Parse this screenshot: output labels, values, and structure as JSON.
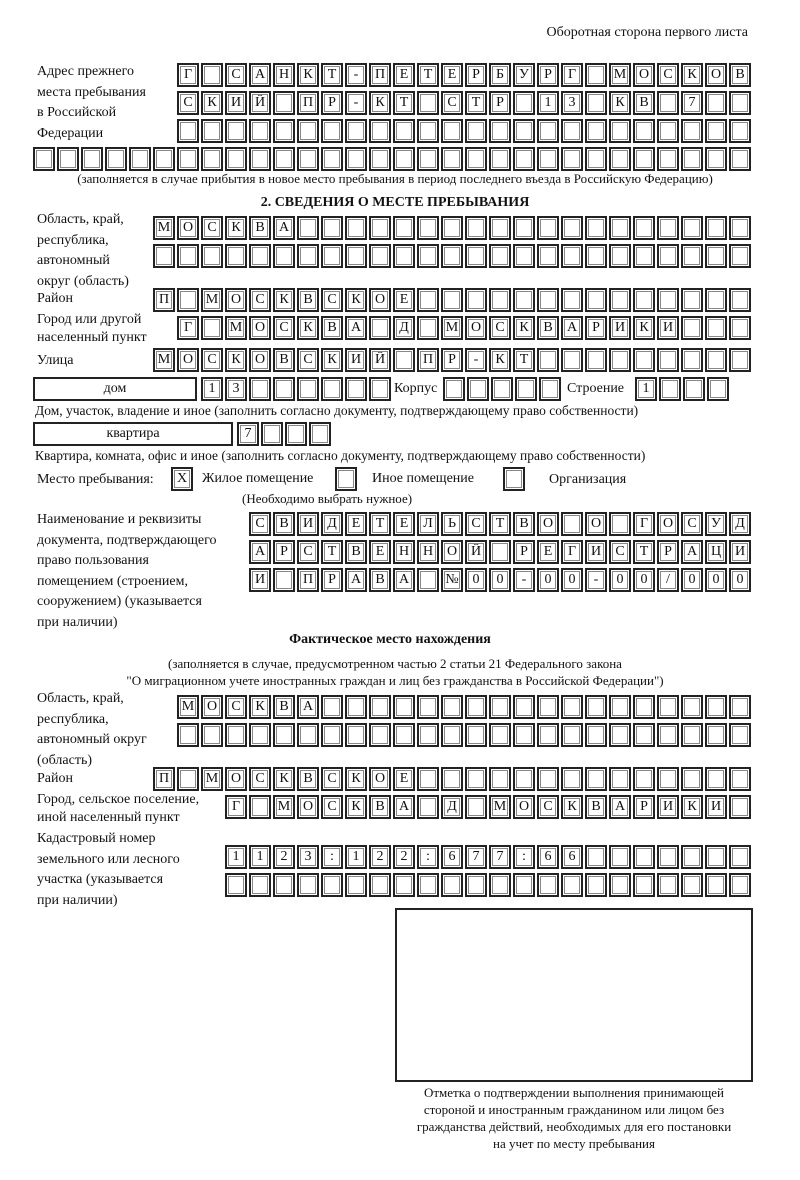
{
  "header": "Оборотная сторона первого листа",
  "prev_address": {
    "label": [
      "Адрес прежнего",
      "места пребывания",
      "в Российской",
      "Федерации"
    ],
    "rows": [
      "Г САНКТ-ПЕТЕРБУРГ МОСКОВ",
      "СКИЙ ПР-КТ СТР 13 КВ 7  ",
      "",
      ""
    ],
    "note": "(заполняется в случае прибытия в новое место пребывания в период последнего въезда в Российскую Федерацию)"
  },
  "section2": {
    "title": "2. СВЕДЕНИЯ О МЕСТЕ ПРЕБЫВАНИЯ",
    "region_label": [
      "Область, край,",
      "республика,",
      "автономный",
      "округ (область)"
    ],
    "region_rows": [
      "МОСКВА",
      ""
    ],
    "district_label": "Район",
    "district": "П МОСКВСКОЕ",
    "city_label": [
      "Город или другой",
      "населенный пункт"
    ],
    "city": "Г МОСКВА Д МОСКВАРИКИ",
    "street_label": "Улица",
    "street": "МОСКОВСКИЙ ПР-КТ",
    "house_type": "дом",
    "house": "13",
    "korpus_label": "Корпус",
    "korpus": "",
    "building_label": "Строение",
    "building": "1",
    "house_note": "Дом, участок, владение и иное (заполнить согласно документу, подтверждающему право собственности)",
    "apt_type": "квартира",
    "apt": "7",
    "apt_note": "Квартира, комната, офис и иное (заполнить согласно документу, подтверждающему право собственности)",
    "stay_label": "Место пребывания:",
    "stay_options": [
      {
        "label": "Жилое помещение",
        "checked": true,
        "mark": "X"
      },
      {
        "label": "Иное помещение",
        "checked": false
      },
      {
        "label": "Организация",
        "checked": false
      }
    ],
    "stay_note": "(Необходимо выбрать нужное)",
    "doc_label": [
      "Наименование и реквизиты",
      "документа, подтверждающего",
      "право пользования",
      "помещением (строением,",
      "сооружением) (указывается",
      "при наличии)"
    ],
    "doc_rows": [
      "СВИДЕТЕЛЬСТВО О ГОСУД",
      "АРСТВЕННОЙ РЕГИСТРАЦИ",
      "И ПРАВА №00-00-00/000"
    ]
  },
  "actual": {
    "title": "Фактическое место нахождения",
    "note": [
      "(заполняется в случае, предусмотренном частью 2 статьи 21 Федерального закона",
      "\"О миграционном учете иностранных граждан и лиц без гражданства в Российской Федерации\")"
    ],
    "region_label": [
      "Область, край,",
      "республика,",
      "автономный округ",
      "(область)"
    ],
    "region_rows": [
      "МОСКВА",
      ""
    ],
    "district_label": "Район",
    "district": "П МОСКВСКОЕ",
    "city_label": [
      "Город, сельское поселение,",
      "иной населенный пункт"
    ],
    "city": "Г МОСКВА Д МОСКВАРИКИ",
    "cadastre_label": [
      "Кадастровый номер",
      "земельного или лесного",
      "участка (указывается",
      "при наличии)"
    ],
    "cadastre_rows": [
      "1123:122:677:66",
      ""
    ]
  },
  "stamp_caption": [
    "Отметка о подтверждении выполнения принимающей",
    "стороной и иностранным гражданином или лицом без",
    "гражданства действий, необходимых для его постановки",
    "на учет по месту пребывания"
  ]
}
